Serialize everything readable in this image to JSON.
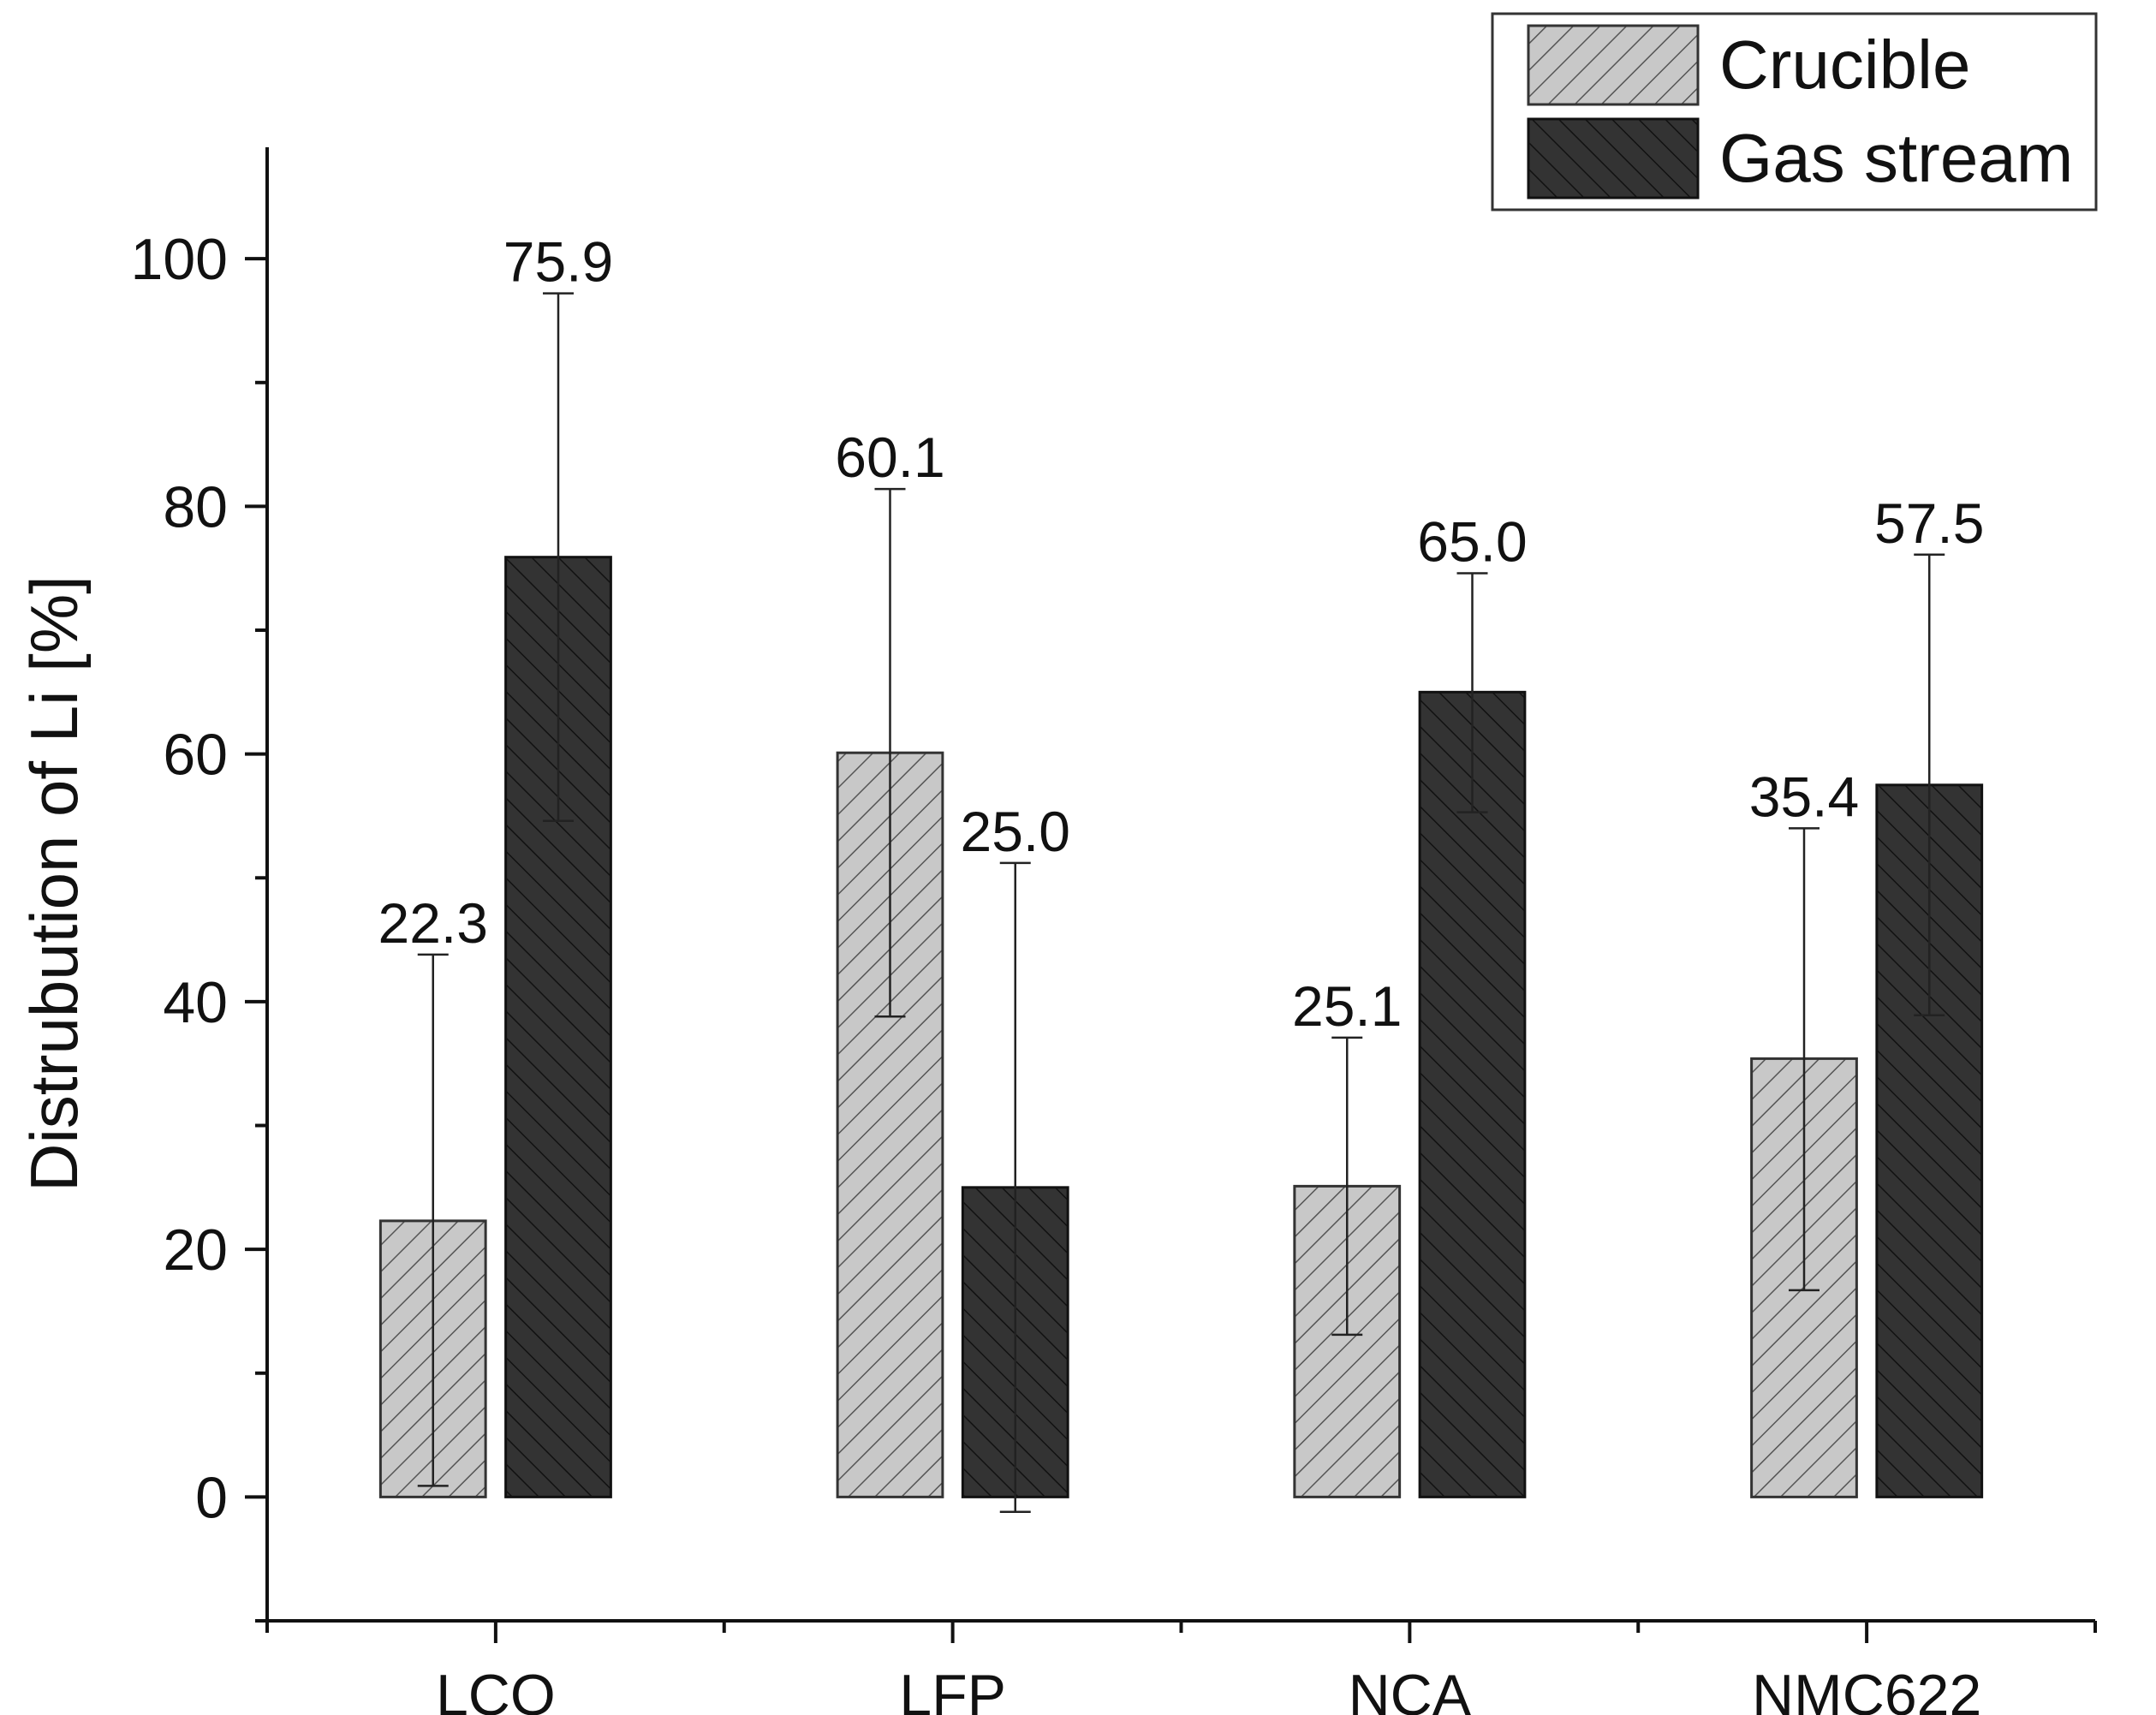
{
  "chart_data": {
    "type": "bar",
    "title": "",
    "xlabel": "",
    "ylabel": "Distrubution of Li [%]",
    "categories": [
      "LCO",
      "LFP",
      "NCA",
      "NMC622"
    ],
    "series": [
      {
        "name": "Crucible",
        "values": [
          22.3,
          60.1,
          25.1,
          35.4
        ],
        "labels": [
          "22.3",
          "60.1",
          "25.1",
          "35.4"
        ],
        "error_low": [
          0.9,
          38.8,
          13.1,
          16.7
        ],
        "error_high": [
          43.8,
          81.4,
          37.1,
          54.0
        ],
        "color": "#c8c8c8",
        "hatch_color": "#555555",
        "hatch": "forward"
      },
      {
        "name": "Gas stream",
        "values": [
          75.9,
          25.0,
          65.0,
          57.5
        ],
        "labels": [
          "75.9",
          "25.0",
          "65.0",
          "57.5"
        ],
        "error_low": [
          54.6,
          -1.2,
          55.3,
          38.9
        ],
        "error_high": [
          97.2,
          51.2,
          74.6,
          76.1
        ],
        "color": "#333333",
        "hatch_color": "#111111",
        "hatch": "backward"
      }
    ],
    "yticks": [
      "0",
      "20",
      "40",
      "60",
      "80",
      "100"
    ],
    "ytick_values": [
      0,
      20,
      40,
      60,
      80,
      100
    ],
    "ylim": [
      -10,
      109
    ],
    "grid": false,
    "legend_position": "top-right"
  }
}
